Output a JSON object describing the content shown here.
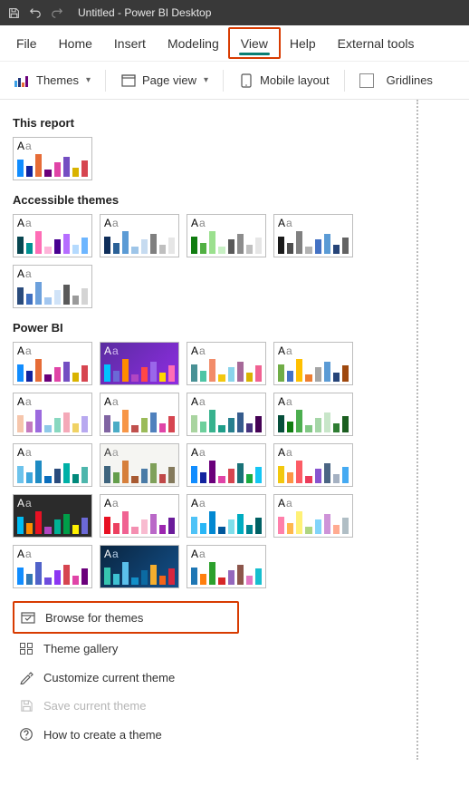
{
  "titlebar": {
    "title": "Untitled - Power BI Desktop"
  },
  "menu": {
    "items": [
      "File",
      "Home",
      "Insert",
      "Modeling",
      "View",
      "Help",
      "External tools"
    ],
    "active_index": 4,
    "highlight_color": "#d83b01",
    "active_underline_color": "#0b7e72"
  },
  "ribbon": {
    "themes_label": "Themes",
    "pageview_label": "Page view",
    "mobile_label": "Mobile layout",
    "gridlines_label": "Gridlines"
  },
  "sections": {
    "this_report": {
      "title": "This report"
    },
    "accessible": {
      "title": "Accessible themes"
    },
    "powerbi": {
      "title": "Power BI"
    }
  },
  "bar_heights": [
    0.75,
    0.45,
    0.95,
    0.3,
    0.6,
    0.85,
    0.4,
    0.7
  ],
  "themes": {
    "this_report": [
      {
        "bg": "#ffffff",
        "aa": [
          "#000000",
          "#888888"
        ],
        "colors": [
          "#118dff",
          "#12239e",
          "#e66c37",
          "#6b007b",
          "#e044a7",
          "#744ec2",
          "#d9b300",
          "#d64550"
        ]
      }
    ],
    "accessible": [
      {
        "bg": "#ffffff",
        "aa": [
          "#000000",
          "#888888"
        ],
        "colors": [
          "#074650",
          "#009292",
          "#fe6db6",
          "#feb5da",
          "#480091",
          "#b66dff",
          "#b5dafe",
          "#6db6ff"
        ]
      },
      {
        "bg": "#ffffff",
        "aa": [
          "#000000",
          "#888888"
        ],
        "colors": [
          "#0f2e5a",
          "#2b6197",
          "#5b9bd5",
          "#9ec5e8",
          "#c6dbf0",
          "#7f7f7f",
          "#bfbfbf",
          "#e6e6e6"
        ]
      },
      {
        "bg": "#ffffff",
        "aa": [
          "#000000",
          "#888888"
        ],
        "colors": [
          "#107c10",
          "#52b043",
          "#9be08e",
          "#c8f0c4",
          "#595959",
          "#8c8c8c",
          "#bfbfbf",
          "#e6e6e6"
        ]
      },
      {
        "bg": "#ffffff",
        "aa": [
          "#000000",
          "#888888"
        ],
        "colors": [
          "#1a1a1a",
          "#4d4d4d",
          "#808080",
          "#b3b3b3",
          "#4472c4",
          "#5b9bd5",
          "#264478",
          "#636363"
        ]
      },
      {
        "bg": "#ffffff",
        "aa": [
          "#000000",
          "#888888"
        ],
        "colors": [
          "#2a4b7c",
          "#3f6fbf",
          "#6ca0dc",
          "#a3c7f0",
          "#d0e3f8",
          "#5a5a5a",
          "#9a9a9a",
          "#d4d4d4"
        ]
      }
    ],
    "powerbi": [
      {
        "bg": "#ffffff",
        "aa": [
          "#000000",
          "#888888"
        ],
        "colors": [
          "#118dff",
          "#12239e",
          "#e66c37",
          "#6b007b",
          "#e044a7",
          "#744ec2",
          "#d9b300",
          "#d64550"
        ]
      },
      {
        "bg": "linear-gradient(135deg,#5a2ca0,#8e2de2)",
        "aa": [
          "#ffffff",
          "#d0b8f0"
        ],
        "colors": [
          "#00c2ff",
          "#6b69d6",
          "#ff8c00",
          "#b146c2",
          "#ff4747",
          "#9a67ea",
          "#ffd700",
          "#ff6eb4"
        ]
      },
      {
        "bg": "#ffffff",
        "aa": [
          "#000000",
          "#888888"
        ],
        "colors": [
          "#499195",
          "#4ec5a5",
          "#f28c6a",
          "#f2c80f",
          "#8ad4eb",
          "#a66999",
          "#d9b300",
          "#f06292"
        ]
      },
      {
        "bg": "#ffffff",
        "aa": [
          "#000000",
          "#888888"
        ],
        "colors": [
          "#70ad47",
          "#4472c4",
          "#ffc000",
          "#ed7d31",
          "#a5a5a5",
          "#5b9bd5",
          "#264478",
          "#9e480e"
        ]
      },
      {
        "bg": "#ffffff",
        "aa": [
          "#000000",
          "#888888"
        ],
        "colors": [
          "#f6c6ac",
          "#c47ac0",
          "#9c6ade",
          "#8ec9e8",
          "#88d8c0",
          "#f4a9b8",
          "#f0d264",
          "#b8a9f0"
        ]
      },
      {
        "bg": "#ffffff",
        "aa": [
          "#000000",
          "#888888"
        ],
        "colors": [
          "#8064a2",
          "#4bacc6",
          "#f79646",
          "#c0504d",
          "#9bbb59",
          "#4f81bd",
          "#e044a7",
          "#d64550"
        ]
      },
      {
        "bg": "#ffffff",
        "aa": [
          "#000000",
          "#888888"
        ],
        "colors": [
          "#a9d4a0",
          "#6dcf9c",
          "#38b28e",
          "#1f9e89",
          "#277f8e",
          "#365c8d",
          "#46337e",
          "#440154"
        ]
      },
      {
        "bg": "#ffffff",
        "aa": [
          "#000000",
          "#888888"
        ],
        "colors": [
          "#064f3b",
          "#107c10",
          "#4cae4f",
          "#81c784",
          "#a5d6a7",
          "#c8e6c9",
          "#2e7d32",
          "#1b5e20"
        ]
      },
      {
        "bg": "#ffffff",
        "aa": [
          "#000000",
          "#888888"
        ],
        "colors": [
          "#6dc3ec",
          "#3fa7dd",
          "#1e8bc3",
          "#0a6ebd",
          "#2a4b7c",
          "#00b0a6",
          "#00897b",
          "#4db6ac"
        ]
      },
      {
        "bg": "#f5f5f2",
        "aa": [
          "#333333",
          "#999999"
        ],
        "colors": [
          "#3e647d",
          "#649e4b",
          "#d67f3b",
          "#a85a32",
          "#4a7ba6",
          "#7fa05a",
          "#c04848",
          "#847a5c"
        ]
      },
      {
        "bg": "#ffffff",
        "aa": [
          "#000000",
          "#888888"
        ],
        "colors": [
          "#118dff",
          "#12239e",
          "#6b007b",
          "#e044a7",
          "#d64550",
          "#197278",
          "#1aab40",
          "#15c6f4"
        ]
      },
      {
        "bg": "#ffffff",
        "aa": [
          "#000000",
          "#888888"
        ],
        "colors": [
          "#f2c80f",
          "#fd9644",
          "#fc5c65",
          "#eb3b5a",
          "#8854d0",
          "#4b6584",
          "#a5b1c2",
          "#45aaf2"
        ]
      },
      {
        "bg": "#2b2b2b",
        "dark": true,
        "aa": [
          "#ffffff",
          "#c8c8c8"
        ],
        "colors": [
          "#00bcf2",
          "#ff8c00",
          "#e81123",
          "#b146c2",
          "#00b294",
          "#009e49",
          "#fff100",
          "#6b69d6"
        ]
      },
      {
        "bg": "#ffffff",
        "aa": [
          "#000000",
          "#888888"
        ],
        "colors": [
          "#e81123",
          "#ec4060",
          "#f06292",
          "#f48fb1",
          "#f8bbd0",
          "#ba68c8",
          "#9c27b0",
          "#6a1b9a"
        ]
      },
      {
        "bg": "#ffffff",
        "aa": [
          "#000000",
          "#888888"
        ],
        "colors": [
          "#4fc3f7",
          "#29b6f6",
          "#0288d1",
          "#01579b",
          "#80deea",
          "#00acc1",
          "#00838f",
          "#006064"
        ]
      },
      {
        "bg": "#ffffff",
        "aa": [
          "#000000",
          "#888888"
        ],
        "colors": [
          "#ff80ab",
          "#ffb74d",
          "#fff176",
          "#aed581",
          "#81d4fa",
          "#ce93d8",
          "#ffab91",
          "#b0bec5"
        ]
      },
      {
        "bg": "#ffffff",
        "aa": [
          "#000000",
          "#888888"
        ],
        "colors": [
          "#118dff",
          "#3278b4",
          "#5062c9",
          "#6e4cde",
          "#8c36f3",
          "#d64550",
          "#e044a7",
          "#6b007b"
        ]
      },
      {
        "bg": "linear-gradient(135deg,#0a2540,#13508a)",
        "dark": true,
        "aa": [
          "#ffffff",
          "#b8d0e8"
        ],
        "colors": [
          "#36c5b0",
          "#3ec1d3",
          "#5bc0eb",
          "#128fc8",
          "#0b6aa2",
          "#f6ae2d",
          "#f26419",
          "#d7263d"
        ]
      },
      {
        "bg": "#ffffff",
        "aa": [
          "#000000",
          "#888888"
        ],
        "colors": [
          "#1f77b4",
          "#ff7f0e",
          "#2ca02c",
          "#d62728",
          "#9467bd",
          "#8c564b",
          "#e377c2",
          "#17becf"
        ]
      }
    ]
  },
  "footer": {
    "browse": "Browse for themes",
    "gallery": "Theme gallery",
    "customize": "Customize current theme",
    "save": "Save current theme",
    "howto": "How to create a theme",
    "highlighted_index": 0,
    "disabled_index": 3
  }
}
